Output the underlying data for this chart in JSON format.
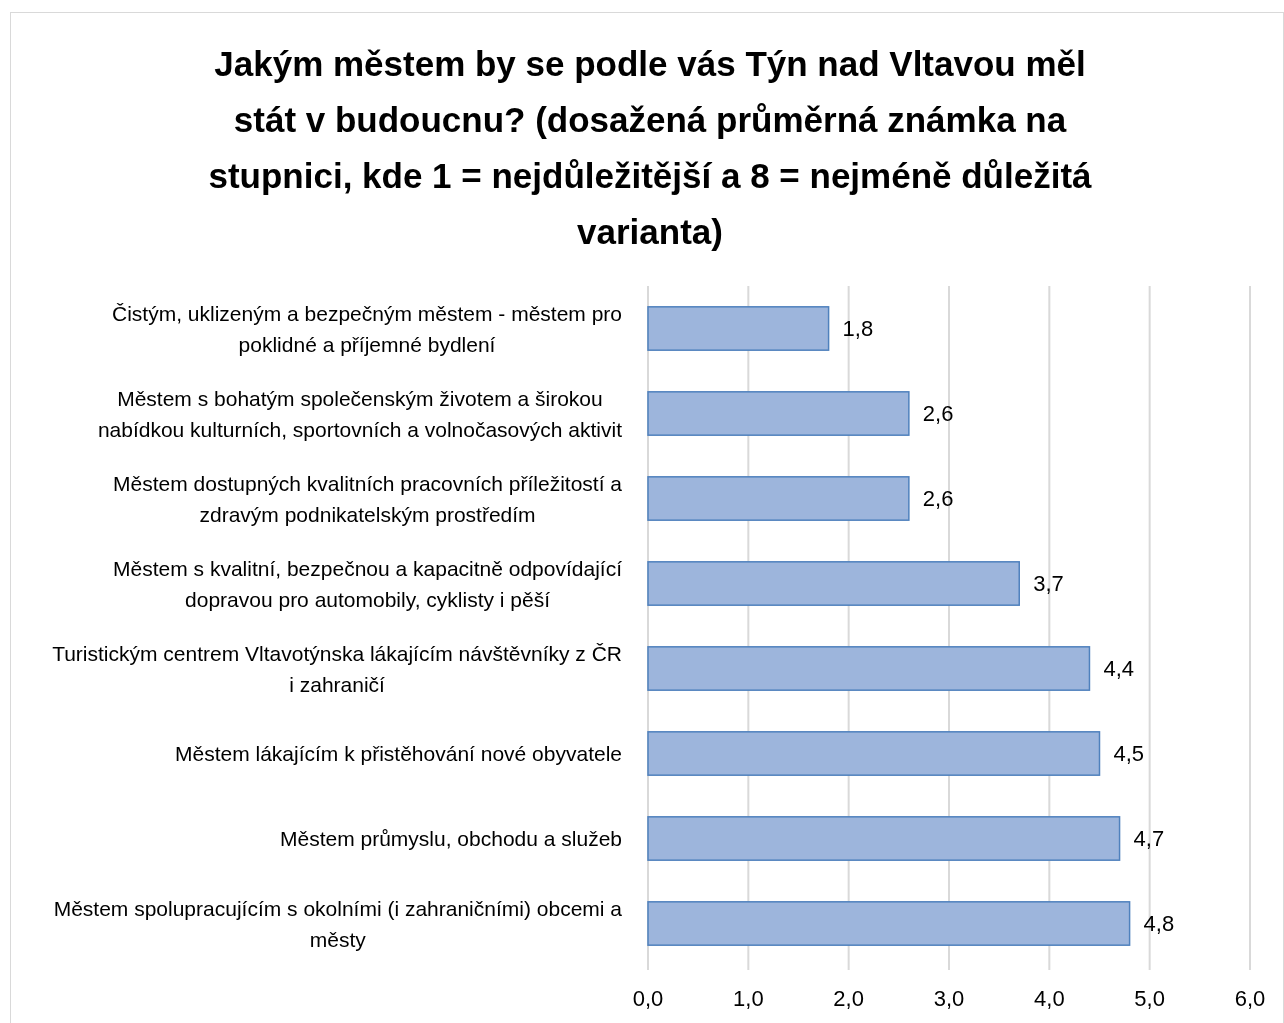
{
  "chart_data": {
    "type": "bar",
    "orientation": "horizontal",
    "title": "Jakým městem by se podle vás Týn nad Vltavou měl stát v budoucnu? (dosažená průměrná známka na stupnici, kde 1 = nejdůležitější a 8 = nejméně důležitá varianta)",
    "categories": [
      "Čistým, uklizeným a bezpečným městem - městem pro poklidné a příjemné bydlení",
      "Městem s bohatým společenským životem a širokou nabídkou kulturních, sportovních a volnočasových aktivit",
      "Městem dostupných kvalitních pracovních příležitostí a zdravým podnikatelským prostředím",
      "Městem s kvalitní, bezpečnou a kapacitně odpovídající dopravou pro automobily, cyklisty i pěší",
      "Turistickým centrem Vltavotýnska lákajícím návštěvníky z ČR i zahraničí",
      "Městem lákajícím k přistěhování nové obyvatele",
      "Městem průmyslu, obchodu a služeb",
      "Městem spolupracujícím s okolními (i zahraničními) obcemi a městy"
    ],
    "values": [
      1.8,
      2.6,
      2.6,
      3.7,
      4.4,
      4.5,
      4.7,
      4.8
    ],
    "color": "#9db5dc",
    "value_labels": [
      "1,8",
      "2,6",
      "2,6",
      "3,7",
      "4,4",
      "4,5",
      "4,7",
      "4,8"
    ],
    "xlim": [
      0,
      6
    ],
    "xticks": [
      {
        "value": 0,
        "label": "0,0"
      },
      {
        "value": 1,
        "label": "1,0"
      },
      {
        "value": 2,
        "label": "2,0"
      },
      {
        "value": 3,
        "label": "3,0"
      },
      {
        "value": 4,
        "label": "4,0"
      },
      {
        "value": 5,
        "label": "5,0"
      },
      {
        "value": 6,
        "label": "6,0"
      }
    ],
    "grid": "x"
  }
}
